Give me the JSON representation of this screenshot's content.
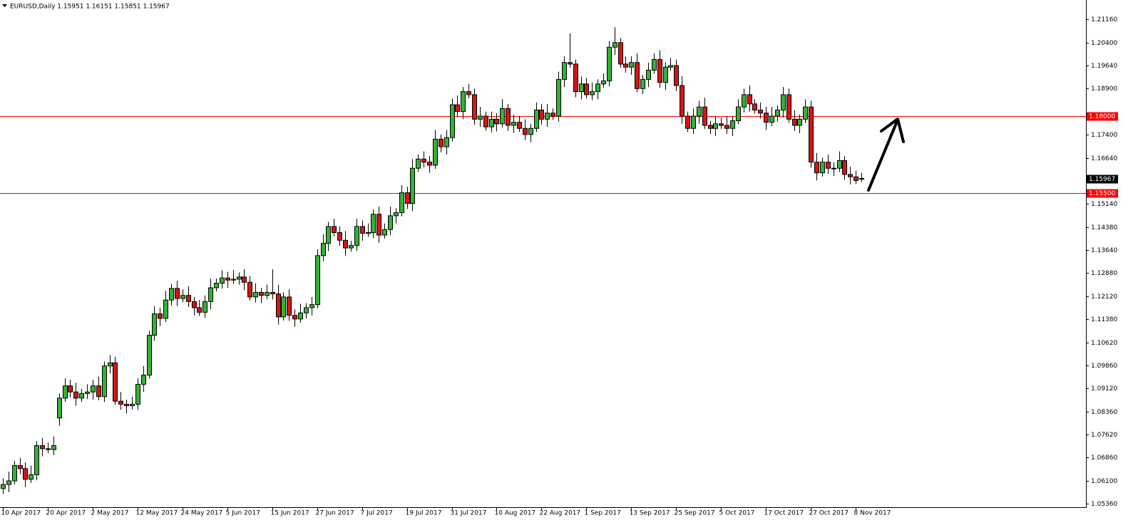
{
  "chart_data": {
    "type": "candlestick",
    "title": "EURUSD,Daily  1.15951 1.16151 1.15851 1.15967",
    "up_color": "#35b135",
    "down_color": "#d41515",
    "level_color": "#ff0000",
    "grid": false,
    "ylim": [
      1.0524,
      1.2179
    ],
    "yticks": [
      {
        "value": 1.2116,
        "label": "1.21160"
      },
      {
        "value": 1.204,
        "label": "1.20400"
      },
      {
        "value": 1.1964,
        "label": "1.19640"
      },
      {
        "value": 1.189,
        "label": "1.18900"
      },
      {
        "value": 1.174,
        "label": "1.17400"
      },
      {
        "value": 1.1664,
        "label": "1.16640"
      },
      {
        "value": 1.1514,
        "label": "1.15140"
      },
      {
        "value": 1.1438,
        "label": "1.14380"
      },
      {
        "value": 1.1364,
        "label": "1.13640"
      },
      {
        "value": 1.1288,
        "label": "1.12880"
      },
      {
        "value": 1.1212,
        "label": "1.12120"
      },
      {
        "value": 1.1138,
        "label": "1.11380"
      },
      {
        "value": 1.1062,
        "label": "1.10620"
      },
      {
        "value": 1.0986,
        "label": "1.09860"
      },
      {
        "value": 1.0912,
        "label": "1.09120"
      },
      {
        "value": 1.0836,
        "label": "1.08360"
      },
      {
        "value": 1.0762,
        "label": "1.07620"
      },
      {
        "value": 1.0686,
        "label": "1.06860"
      },
      {
        "value": 1.061,
        "label": "1.06100"
      },
      {
        "value": 1.0536,
        "label": "1.05360"
      }
    ],
    "levels": [
      {
        "value": 1.18,
        "label": "1.18000"
      },
      {
        "value": 1.155,
        "label": "1.15500"
      }
    ],
    "last_price": {
      "value": 1.15967,
      "label": "1.15967"
    },
    "categories": [
      "10 Apr 2017",
      null,
      null,
      null,
      null,
      null,
      null,
      null,
      "20 Apr 2017",
      null,
      null,
      null,
      null,
      null,
      null,
      null,
      "2 May 2017",
      null,
      null,
      null,
      null,
      null,
      null,
      null,
      "12 May 2017",
      null,
      null,
      null,
      null,
      null,
      null,
      null,
      "24 May 2017",
      null,
      null,
      null,
      null,
      null,
      null,
      null,
      "5 Jun 2017",
      null,
      null,
      null,
      null,
      null,
      null,
      null,
      "15 Jun 2017",
      null,
      null,
      null,
      null,
      null,
      null,
      null,
      "27 Jun 2017",
      null,
      null,
      null,
      null,
      null,
      null,
      null,
      "7 Jul 2017",
      null,
      null,
      null,
      null,
      null,
      null,
      null,
      "19 Jul 2017",
      null,
      null,
      null,
      null,
      null,
      null,
      null,
      "31 Jul 2017",
      null,
      null,
      null,
      null,
      null,
      null,
      null,
      "10 Aug 2017",
      null,
      null,
      null,
      null,
      null,
      null,
      null,
      "22 Aug 2017",
      null,
      null,
      null,
      null,
      null,
      null,
      null,
      "1 Sep 2017",
      null,
      null,
      null,
      null,
      null,
      null,
      null,
      "13 Sep 2017",
      null,
      null,
      null,
      null,
      null,
      null,
      null,
      "25 Sep 2017",
      null,
      null,
      null,
      null,
      null,
      null,
      null,
      "5 Oct 2017",
      null,
      null,
      null,
      null,
      null,
      null,
      null,
      "17 Oct 2017",
      null,
      null,
      null,
      null,
      null,
      null,
      null,
      "27 Oct 2017",
      null,
      null,
      null,
      null,
      null,
      null,
      null,
      "8 Nov 2017",
      null
    ],
    "open": [
      1.0585,
      1.0598,
      1.061,
      1.066,
      1.065,
      1.0615,
      1.063,
      1.0725,
      1.0715,
      1.0712,
      1.0815,
      1.088,
      1.092,
      1.09,
      1.088,
      1.0895,
      1.09,
      1.092,
      1.0885,
      1.0985,
      1.0995,
      1.087,
      1.086,
      1.0855,
      1.086,
      1.0925,
      1.0955,
      1.1085,
      1.1155,
      1.114,
      1.12,
      1.1238,
      1.1205,
      1.1215,
      1.1195,
      1.1175,
      1.116,
      1.1195,
      1.124,
      1.1255,
      1.1272,
      1.1265,
      1.1268,
      1.1275,
      1.1258,
      1.121,
      1.1225,
      1.1215,
      1.1225,
      1.122,
      1.1145,
      1.121,
      1.115,
      1.1138,
      1.1158,
      1.1175,
      1.1185,
      1.1345,
      1.1385,
      1.144,
      1.142,
      1.1395,
      1.137,
      1.1378,
      1.144,
      1.1418,
      1.142,
      1.148,
      1.1412,
      1.143,
      1.1475,
      1.1485,
      1.155,
      1.1515,
      1.163,
      1.166,
      1.165,
      1.164,
      1.1725,
      1.17,
      1.173,
      1.1837,
      1.1815,
      1.188,
      1.187,
      1.179,
      1.18,
      1.1765,
      1.179,
      1.1775,
      1.1825,
      1.177,
      1.178,
      1.176,
      1.174,
      1.176,
      1.182,
      1.179,
      1.181,
      1.18,
      1.192,
      1.1975,
      1.197,
      1.188,
      1.1905,
      1.187,
      1.188,
      1.1905,
      1.1915,
      1.2025,
      1.204,
      1.197,
      1.196,
      1.1975,
      1.189,
      1.192,
      1.195,
      1.1985,
      1.191,
      1.196,
      1.1965,
      1.19,
      1.18,
      1.176,
      1.18,
      1.183,
      1.177,
      1.176,
      1.1775,
      1.177,
      1.176,
      1.1785,
      1.183,
      1.187,
      1.184,
      1.182,
      1.181,
      1.178,
      1.18,
      1.182,
      1.187,
      1.179,
      1.177,
      1.179,
      1.183,
      1.165,
      1.1615,
      1.165,
      1.163,
      1.163,
      1.1655,
      1.161,
      1.1602,
      1.15951
    ],
    "high": [
      1.0618,
      1.064,
      1.0675,
      1.0685,
      1.067,
      1.066,
      1.074,
      1.075,
      1.0735,
      1.0755,
      1.0895,
      1.0945,
      1.094,
      1.093,
      1.091,
      1.0925,
      1.094,
      1.095,
      1.1,
      1.102,
      1.1015,
      1.09,
      1.0875,
      1.0885,
      1.0945,
      1.0985,
      1.11,
      1.118,
      1.1175,
      1.123,
      1.1253,
      1.1263,
      1.1235,
      1.1245,
      1.121,
      1.12,
      1.1215,
      1.127,
      1.127,
      1.1297,
      1.1292,
      1.1298,
      1.129,
      1.13,
      1.1278,
      1.1255,
      1.124,
      1.125,
      1.13,
      1.125,
      1.1225,
      1.1235,
      1.117,
      1.1188,
      1.119,
      1.121,
      1.1365,
      1.1415,
      1.1455,
      1.1465,
      1.144,
      1.1425,
      1.1393,
      1.1465,
      1.146,
      1.145,
      1.1495,
      1.1505,
      1.145,
      1.1505,
      1.15,
      1.1575,
      1.157,
      1.166,
      1.1675,
      1.1685,
      1.167,
      1.1755,
      1.174,
      1.1755,
      1.1857,
      1.1867,
      1.1895,
      1.1905,
      1.189,
      1.183,
      1.1815,
      1.1815,
      1.181,
      1.1855,
      1.184,
      1.1805,
      1.18,
      1.179,
      1.1775,
      1.1845,
      1.184,
      1.184,
      1.1825,
      1.1945,
      1.1995,
      1.207,
      1.1985,
      1.193,
      1.1925,
      1.191,
      1.192,
      1.194,
      1.2045,
      1.209,
      1.2055,
      1.1995,
      1.1995,
      1.2005,
      1.1935,
      1.1975,
      1.2005,
      1.2015,
      1.1975,
      1.199,
      1.1985,
      1.193,
      1.1815,
      1.1825,
      1.185,
      1.186,
      1.1785,
      1.18,
      1.1795,
      1.18,
      1.18,
      1.1855,
      1.189,
      1.19,
      1.1855,
      1.1845,
      1.183,
      1.183,
      1.1835,
      1.1895,
      1.189,
      1.182,
      1.1805,
      1.1855,
      1.185,
      1.168,
      1.1665,
      1.1675,
      1.165,
      1.1685,
      1.167,
      1.1635,
      1.1622,
      1.16151
    ],
    "low": [
      1.0567,
      1.0573,
      1.0598,
      1.0632,
      1.059,
      1.0603,
      1.0612,
      1.069,
      1.07,
      1.0694,
      1.079,
      1.0868,
      1.0882,
      1.0855,
      1.0868,
      1.0877,
      1.0875,
      1.0873,
      1.0867,
      1.096,
      1.0858,
      1.0842,
      1.083,
      1.0843,
      1.0842,
      1.09,
      1.0943,
      1.1067,
      1.1115,
      1.1128,
      1.1182,
      1.118,
      1.1193,
      1.1177,
      1.115,
      1.1148,
      1.1142,
      1.117,
      1.1228,
      1.1237,
      1.124,
      1.1253,
      1.125,
      1.1233,
      1.1198,
      1.1192,
      1.119,
      1.1203,
      1.1202,
      1.112,
      1.1133,
      1.1132,
      1.1113,
      1.1126,
      1.114,
      1.115,
      1.1173,
      1.1327,
      1.136,
      1.1408,
      1.1377,
      1.1345,
      1.1358,
      1.136,
      1.1393,
      1.1406,
      1.1402,
      1.1387,
      1.14,
      1.1412,
      1.145,
      1.1473,
      1.1497,
      1.149,
      1.1618,
      1.1632,
      1.1615,
      1.1628,
      1.1682,
      1.1675,
      1.1718,
      1.1797,
      1.179,
      1.1858,
      1.1772,
      1.1765,
      1.1753,
      1.1747,
      1.175,
      1.1763,
      1.1752,
      1.1745,
      1.1748,
      1.1722,
      1.1715,
      1.1748,
      1.1772,
      1.1765,
      1.1788,
      1.1782,
      1.1895,
      1.1958,
      1.1862,
      1.1855,
      1.1858,
      1.1852,
      1.1855,
      1.1893,
      1.1897,
      1.2,
      1.1958,
      1.1942,
      1.1935,
      1.1878,
      1.1872,
      1.1895,
      1.1938,
      1.1892,
      1.1885,
      1.1948,
      1.1882,
      1.1775,
      1.1748,
      1.1742,
      1.1775,
      1.1758,
      1.1742,
      1.1735,
      1.1758,
      1.1742,
      1.1735,
      1.1773,
      1.1812,
      1.1815,
      1.1808,
      1.1792,
      1.1755,
      1.1768,
      1.1782,
      1.1795,
      1.1778,
      1.1752,
      1.1745,
      1.1778,
      1.1632,
      1.159,
      1.1603,
      1.1612,
      1.1605,
      1.1618,
      1.1592,
      1.1577,
      1.1578,
      1.15851
    ],
    "close": [
      1.0598,
      1.061,
      1.066,
      1.065,
      1.0615,
      1.063,
      1.0725,
      1.0715,
      1.0712,
      1.0725,
      1.088,
      1.092,
      1.09,
      1.088,
      1.0895,
      1.09,
      1.092,
      1.0885,
      1.0985,
      1.0995,
      1.087,
      1.086,
      1.0855,
      1.086,
      1.0925,
      1.0955,
      1.1085,
      1.1155,
      1.114,
      1.12,
      1.1238,
      1.1205,
      1.1215,
      1.1195,
      1.1175,
      1.116,
      1.1195,
      1.124,
      1.1255,
      1.1272,
      1.1265,
      1.1268,
      1.1275,
      1.1258,
      1.121,
      1.1225,
      1.1215,
      1.1225,
      1.122,
      1.1145,
      1.121,
      1.115,
      1.1138,
      1.1158,
      1.1175,
      1.1185,
      1.1345,
      1.1385,
      1.144,
      1.142,
      1.1395,
      1.137,
      1.1378,
      1.144,
      1.1418,
      1.142,
      1.148,
      1.1412,
      1.143,
      1.1475,
      1.1485,
      1.155,
      1.1515,
      1.163,
      1.166,
      1.165,
      1.164,
      1.1725,
      1.17,
      1.173,
      1.1837,
      1.1815,
      1.188,
      1.187,
      1.179,
      1.18,
      1.1765,
      1.179,
      1.1775,
      1.1825,
      1.177,
      1.178,
      1.176,
      1.174,
      1.176,
      1.182,
      1.179,
      1.181,
      1.18,
      1.192,
      1.1975,
      1.197,
      1.188,
      1.1905,
      1.187,
      1.188,
      1.1905,
      1.1915,
      1.2025,
      1.204,
      1.197,
      1.196,
      1.1975,
      1.189,
      1.192,
      1.195,
      1.1985,
      1.191,
      1.196,
      1.1965,
      1.19,
      1.18,
      1.176,
      1.18,
      1.183,
      1.177,
      1.176,
      1.1775,
      1.177,
      1.176,
      1.1785,
      1.183,
      1.187,
      1.184,
      1.182,
      1.181,
      1.178,
      1.18,
      1.182,
      1.187,
      1.179,
      1.177,
      1.179,
      1.183,
      1.165,
      1.1615,
      1.165,
      1.163,
      1.163,
      1.1655,
      1.161,
      1.1602,
      1.159,
      1.15967
    ]
  }
}
